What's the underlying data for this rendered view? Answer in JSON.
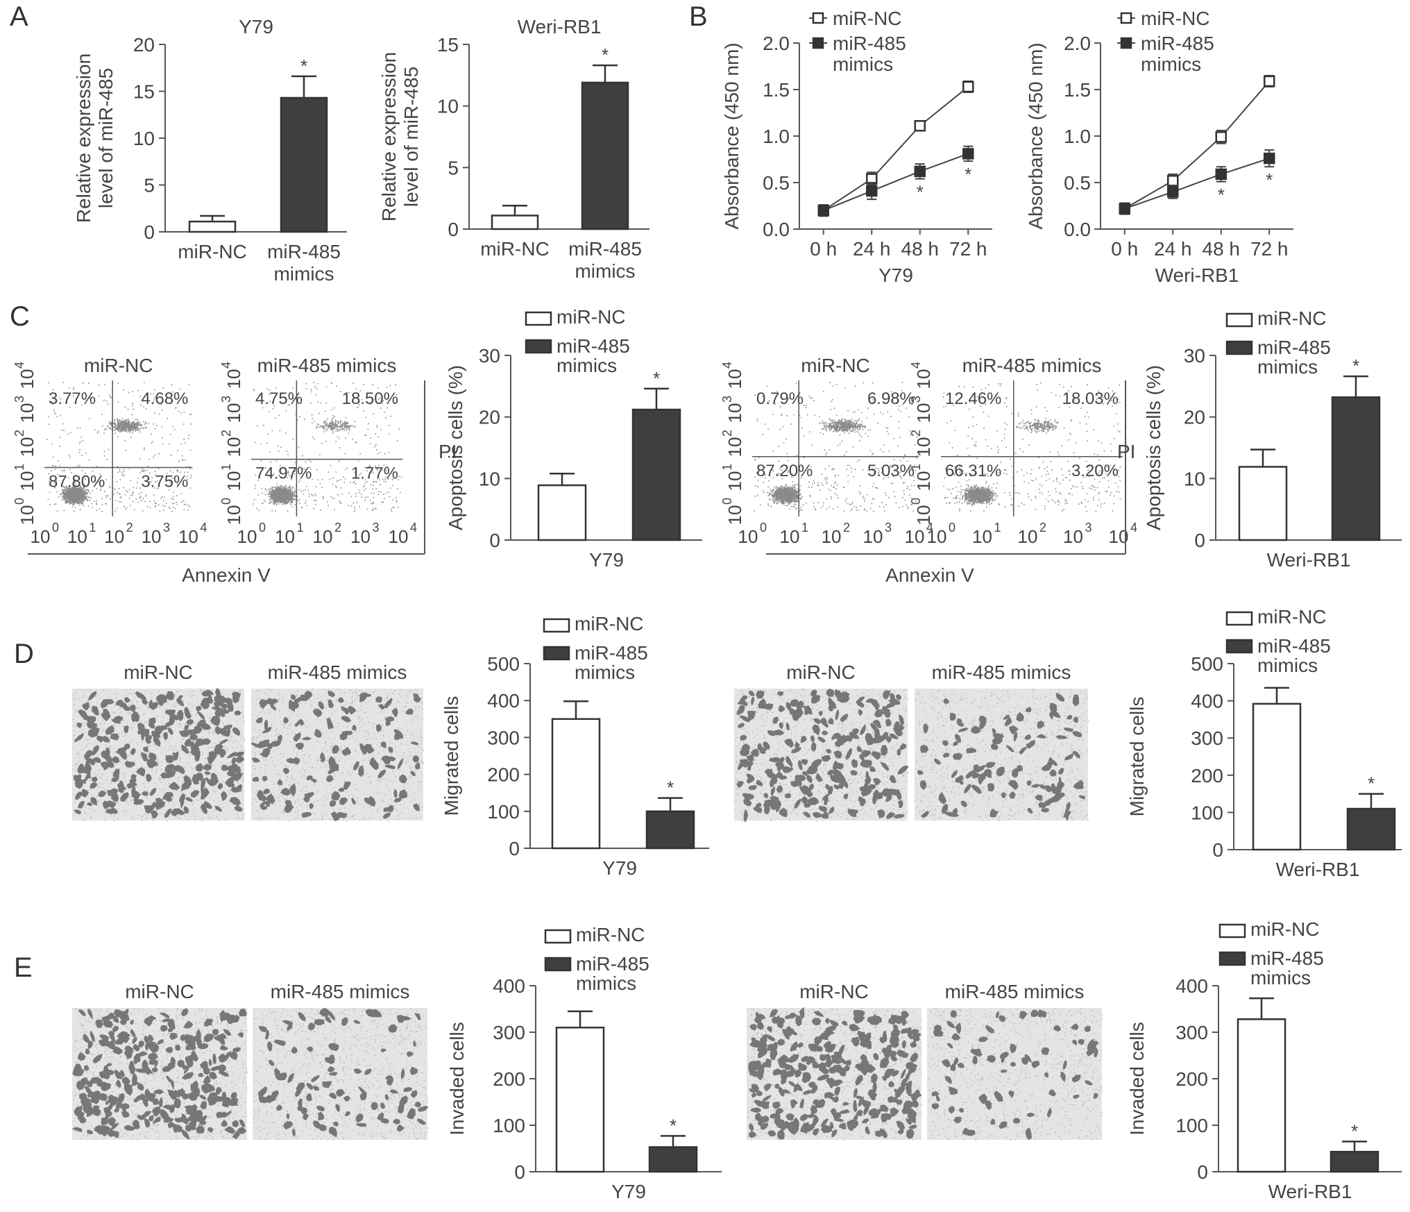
{
  "panel_labels": [
    "A",
    "B",
    "C",
    "D",
    "E"
  ],
  "colors": {
    "nc_fill": "#ffffff",
    "mimic_fill": "#3f3f3f",
    "axis": "#555555",
    "text": "#444444",
    "dots": "#8a8a8a",
    "cells": "#6a6a6a",
    "well_bg": "#e4e4e4"
  },
  "common": {
    "groups": [
      "miR-NC",
      "miR-485 mimics"
    ],
    "cat_nc": "miR-NC",
    "cat_mimic": [
      "miR-485",
      "mimics"
    ],
    "legend_nc": "miR-NC",
    "legend_mimic": [
      "miR-485",
      "mimics"
    ],
    "star": "*"
  },
  "chart_data": [
    {
      "id": "A1",
      "panel": "A",
      "type": "bar",
      "title": "Y79",
      "categories": [
        "miR-NC",
        "miR-485 mimics"
      ],
      "values": [
        1.1,
        14.3
      ],
      "errors": [
        0.6,
        2.3
      ],
      "ylabel": [
        "Relative expression",
        "level of miR-485"
      ],
      "ylim": [
        0,
        20
      ],
      "yticks": [
        0,
        5,
        10,
        15,
        20
      ],
      "significance": [
        false,
        true
      ]
    },
    {
      "id": "A2",
      "panel": "A",
      "type": "bar",
      "title": "Weri-RB1",
      "categories": [
        "miR-NC",
        "miR-485 mimics"
      ],
      "values": [
        1.1,
        11.9
      ],
      "errors": [
        0.8,
        1.4
      ],
      "ylabel": [
        "Relative expression",
        "level of miR-485"
      ],
      "ylim": [
        0,
        15
      ],
      "yticks": [
        0,
        5,
        10,
        15
      ],
      "significance": [
        false,
        true
      ]
    },
    {
      "id": "B1",
      "panel": "B",
      "type": "line",
      "xlabel": "Y79",
      "ylabel": "Absorbance (450 nm)",
      "x": [
        "0 h",
        "24 h",
        "48 h",
        "72 h"
      ],
      "ylim": [
        0,
        2.0
      ],
      "yticks": [
        "0.0",
        "0.5",
        "1.0",
        "1.5",
        "2.0"
      ],
      "legend": "top-left",
      "series": [
        {
          "name": "miR-NC",
          "values": [
            0.2,
            0.54,
            1.11,
            1.53
          ],
          "errors": [
            0.06,
            0.07,
            0.05,
            0.06
          ],
          "marker": "open-square"
        },
        {
          "name": "miR-485 mimics",
          "values": [
            0.2,
            0.41,
            0.62,
            0.81
          ],
          "errors": [
            0.06,
            0.09,
            0.08,
            0.08
          ],
          "marker": "filled-square",
          "significance": [
            false,
            false,
            true,
            true
          ]
        }
      ]
    },
    {
      "id": "B2",
      "panel": "B",
      "type": "line",
      "xlabel": "Weri-RB1",
      "ylabel": "Absorbance (450 nm)",
      "x": [
        "0 h",
        "24 h",
        "48 h",
        "72 h"
      ],
      "ylim": [
        0,
        2.0
      ],
      "yticks": [
        "0.0",
        "0.5",
        "1.0",
        "1.5",
        "2.0"
      ],
      "legend": "top-left",
      "series": [
        {
          "name": "miR-NC",
          "values": [
            0.22,
            0.52,
            0.99,
            1.59
          ],
          "errors": [
            0.06,
            0.07,
            0.07,
            0.06
          ],
          "marker": "open-square"
        },
        {
          "name": "miR-485 mimics",
          "values": [
            0.22,
            0.4,
            0.59,
            0.76
          ],
          "errors": [
            0.06,
            0.07,
            0.08,
            0.09
          ],
          "marker": "filled-square",
          "significance": [
            false,
            false,
            true,
            true
          ]
        }
      ]
    },
    {
      "id": "C1",
      "panel": "C",
      "type": "bar",
      "xlabel": "Y79",
      "ylabel": "Apoptosis cells (%)",
      "categories": [
        "miR-NC",
        "miR-485 mimics"
      ],
      "values": [
        8.9,
        21.2
      ],
      "errors": [
        1.9,
        3.4
      ],
      "ylim": [
        0,
        30
      ],
      "yticks": [
        0,
        10,
        20,
        30
      ],
      "legend": "top",
      "significance": [
        false,
        true
      ]
    },
    {
      "id": "C2",
      "panel": "C",
      "type": "bar",
      "xlabel": "Weri-RB1",
      "ylabel": "Apoptosis cells (%)",
      "categories": [
        "miR-NC",
        "miR-485 mimics"
      ],
      "values": [
        11.9,
        23.2
      ],
      "errors": [
        2.8,
        3.4
      ],
      "ylim": [
        0,
        30
      ],
      "yticks": [
        0,
        10,
        20,
        30
      ],
      "legend": "top",
      "significance": [
        false,
        true
      ]
    },
    {
      "id": "D1",
      "panel": "D",
      "type": "bar",
      "xlabel": "Y79",
      "ylabel": "Migrated cells",
      "categories": [
        "miR-NC",
        "miR-485 mimics"
      ],
      "values": [
        350,
        100
      ],
      "errors": [
        48,
        36
      ],
      "ylim": [
        0,
        500
      ],
      "yticks": [
        0,
        100,
        200,
        300,
        400,
        500
      ],
      "legend": "top",
      "significance": [
        false,
        true
      ]
    },
    {
      "id": "D2",
      "panel": "D",
      "type": "bar",
      "xlabel": "Weri-RB1",
      "ylabel": "Migrated cells",
      "categories": [
        "miR-NC",
        "miR-485 mimics"
      ],
      "values": [
        392,
        110
      ],
      "errors": [
        43,
        40
      ],
      "ylim": [
        0,
        500
      ],
      "yticks": [
        0,
        100,
        200,
        300,
        400,
        500
      ],
      "legend": "top",
      "significance": [
        false,
        true
      ]
    },
    {
      "id": "E1",
      "panel": "E",
      "type": "bar",
      "xlabel": "Y79",
      "ylabel": "Invaded cells",
      "categories": [
        "miR-NC",
        "miR-485 mimics"
      ],
      "values": [
        310,
        53
      ],
      "errors": [
        35,
        24
      ],
      "ylim": [
        0,
        400
      ],
      "yticks": [
        0,
        100,
        200,
        300,
        400
      ],
      "legend": "top",
      "significance": [
        false,
        true
      ]
    },
    {
      "id": "E2",
      "panel": "E",
      "type": "bar",
      "xlabel": "Weri-RB1",
      "ylabel": "Invaded cells",
      "categories": [
        "miR-NC",
        "miR-485 mimics"
      ],
      "values": [
        328,
        43
      ],
      "errors": [
        45,
        22
      ],
      "ylim": [
        0,
        400
      ],
      "yticks": [
        0,
        100,
        200,
        300,
        400
      ],
      "legend": "top",
      "significance": [
        false,
        true
      ]
    }
  ],
  "flow": {
    "axis_ticks": [
      "10",
      "10",
      "10",
      "10",
      "10"
    ],
    "axis_exps": [
      "0",
      "1",
      "2",
      "3",
      "4"
    ],
    "xlabel": "Annexin V",
    "ylabel": "PI",
    "groups": [
      {
        "cell_line": "Y79",
        "plots": [
          {
            "title": "miR-NC",
            "quadrants": [
              "3.77%",
              "4.68%",
              "87.80%",
              "3.75%"
            ]
          },
          {
            "title": "miR-485 mimics",
            "quadrants": [
              "4.75%",
              "18.50%",
              "74.97%",
              "1.77%"
            ]
          }
        ]
      },
      {
        "cell_line": "Weri-RB1",
        "plots": [
          {
            "title": "miR-NC",
            "quadrants": [
              "0.79%",
              "6.98%",
              "87.20%",
              "5.03%"
            ]
          },
          {
            "title": "miR-485 mimics",
            "quadrants": [
              "12.46%",
              "18.03%",
              "66.31%",
              "3.20%"
            ]
          }
        ]
      }
    ]
  },
  "micrographs": {
    "D": [
      {
        "title": "miR-NC"
      },
      {
        "title": "miR-485 mimics"
      },
      {
        "title": "miR-NC"
      },
      {
        "title": "miR-485 mimics"
      }
    ],
    "E": [
      {
        "title": "miR-NC"
      },
      {
        "title": "miR-485 mimics"
      },
      {
        "title": "miR-NC"
      },
      {
        "title": "miR-485 mimics"
      }
    ],
    "cell_density": {
      "D": [
        260,
        130,
        250,
        110
      ],
      "E": [
        300,
        90,
        330,
        70
      ]
    }
  }
}
